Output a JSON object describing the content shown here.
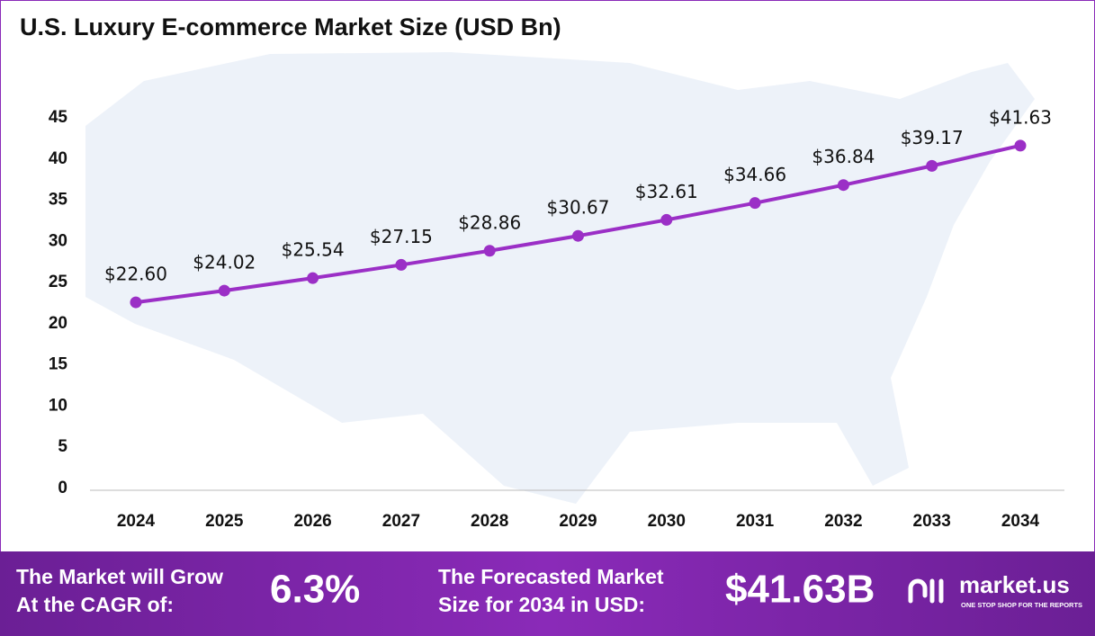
{
  "chart_data": {
    "type": "line",
    "title": "U.S. Luxury E-commerce Market  Size (USD Bn)",
    "categories": [
      "2024",
      "2025",
      "2026",
      "2027",
      "2028",
      "2029",
      "2030",
      "2031",
      "2032",
      "2033",
      "2034"
    ],
    "values": [
      22.6,
      24.02,
      25.54,
      27.15,
      28.86,
      30.67,
      32.61,
      34.66,
      36.84,
      39.17,
      41.63
    ],
    "value_labels": [
      "$22.60",
      "$24.02",
      "$25.54",
      "$27.15",
      "$28.86",
      "$30.67",
      "$32.61",
      "$34.66",
      "$36.84",
      "$39.17",
      "$41.63"
    ],
    "color": "#9b2fc6",
    "ylim": [
      0,
      45
    ],
    "yticks": [
      0,
      5,
      10,
      15,
      20,
      25,
      30,
      35,
      40,
      45
    ],
    "grid": false
  },
  "footer": {
    "cagr_text": [
      "The Market will Grow",
      "At the CAGR of:"
    ],
    "cagr_value": "6.3%",
    "forecast_text": [
      "The Forecasted Market",
      "Size for 2034 in USD:"
    ],
    "forecast_value": "$41.63B",
    "brand": "market.us",
    "tagline": "ONE STOP SHOP FOR THE REPORTS"
  }
}
